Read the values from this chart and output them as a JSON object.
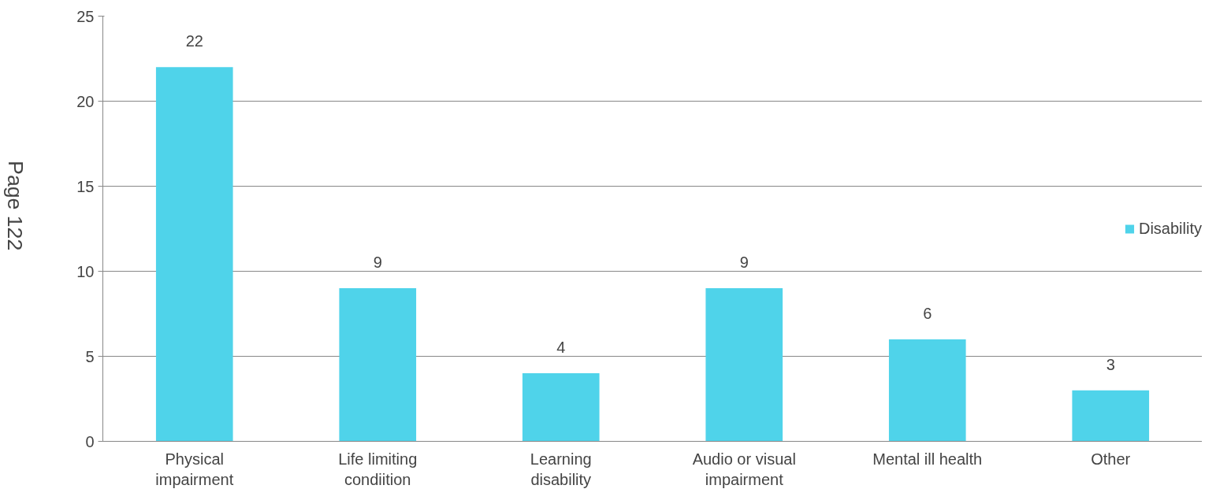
{
  "chart_data": {
    "type": "bar",
    "categories": [
      "Physical impairment",
      "Life limiting condiition",
      "Learning disability",
      "Audio or visual impairment",
      "Mental ill health",
      "Other"
    ],
    "series": [
      {
        "name": "Disability",
        "color": "#4fd3ea",
        "values": [
          22,
          9,
          4,
          9,
          6,
          3
        ]
      }
    ],
    "ylim": [
      0,
      25
    ],
    "yticks": [
      0,
      5,
      10,
      15,
      20,
      25
    ],
    "grid": "y",
    "legend": "right",
    "data_labels": true,
    "annotations": [
      "Page 122"
    ]
  }
}
